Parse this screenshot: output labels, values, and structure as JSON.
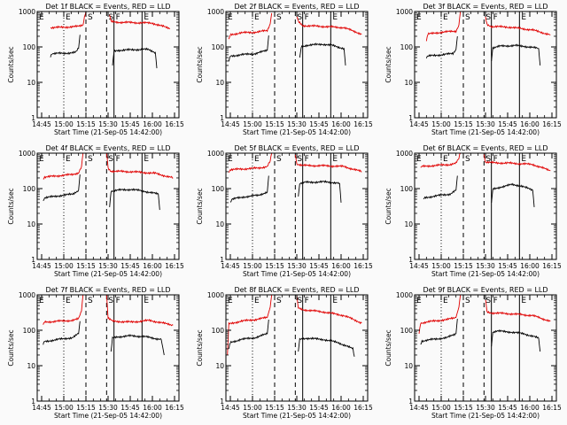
{
  "figure": {
    "panel_title_template": "Det {d}f BLACK = Events, RED = LLD",
    "xlabel": "Start Time (21-Sep-05 14:42:00)",
    "ylabel": "Counts/sec",
    "x_tick_labels": [
      "14:45",
      "15:00",
      "15:15",
      "15:30",
      "15:45",
      "16:00",
      "16:15"
    ],
    "y_tick_labels": [
      "1",
      "10",
      "100",
      "1000"
    ],
    "colors": {
      "events": "#000000",
      "lld": "#e00000"
    },
    "markers": [
      {
        "label": "E",
        "time_min": 0.0,
        "style": "dotted"
      },
      {
        "label": "E",
        "time_min": 18.0,
        "style": "dotted"
      },
      {
        "label": "S",
        "time_min": 33.0,
        "style": "dashed"
      },
      {
        "label": "S",
        "time_min": 47.0,
        "style": "dashed"
      },
      {
        "label": "F",
        "time_min": 52.0,
        "style": "solid"
      },
      {
        "label": "E",
        "time_min": 71.0,
        "style": "solid"
      }
    ]
  },
  "chart_data": [
    {
      "type": "line",
      "title": "Det 1f BLACK = Events, RED = LLD",
      "detector": 1,
      "xlabel": "Start Time (21-Sep-05 14:42:00)",
      "ylabel": "Counts/sec",
      "xlim_min": [
        0,
        96
      ],
      "ylim": [
        1,
        1000
      ],
      "yscale": "log",
      "series": [
        {
          "name": "LLD",
          "color": "#e00000",
          "segments": [
            {
              "x": [
                9,
                18,
                28,
                31,
                32,
                33
              ],
              "y": [
                350,
                360,
                380,
                420,
                700,
                1100
              ]
            },
            {
              "x": [
                49,
                50,
                54,
                70,
                78,
                90
              ],
              "y": [
                800,
                520,
                500,
                480,
                470,
                330
              ]
            }
          ]
        },
        {
          "name": "Events",
          "color": "#000000",
          "segments": [
            {
              "x": [
                9,
                10,
                18,
                26,
                28,
                29
              ],
              "y": [
                55,
                65,
                66,
                70,
                90,
                220
              ]
            },
            {
              "x": [
                51,
                52,
                54,
                70,
                75,
                80,
                81
              ],
              "y": [
                30,
                75,
                80,
                85,
                85,
                70,
                25
              ]
            }
          ]
        }
      ]
    },
    {
      "type": "line",
      "title": "Det 2f BLACK = Events, RED = LLD",
      "detector": 2,
      "xlabel": "Start Time (21-Sep-05 14:42:00)",
      "ylabel": "Counts/sec",
      "xlim_min": [
        0,
        96
      ],
      "ylim": [
        1,
        1000
      ],
      "yscale": "log",
      "series": [
        {
          "name": "LLD",
          "color": "#e00000",
          "segments": [
            {
              "x": [
                2,
                3,
                10,
                20,
                28,
                30,
                31
              ],
              "y": [
                160,
                220,
                250,
                260,
                290,
                450,
                900
              ]
            },
            {
              "x": [
                48,
                49,
                52,
                65,
                80,
                92
              ],
              "y": [
                750,
                520,
                400,
                380,
                350,
                230
              ]
            }
          ]
        },
        {
          "name": "Events",
          "color": "#000000",
          "segments": [
            {
              "x": [
                2,
                3,
                10,
                20,
                28,
                29
              ],
              "y": [
                40,
                55,
                60,
                65,
                80,
                210
              ]
            },
            {
              "x": [
                50,
                51,
                54,
                65,
                72,
                80,
                81
              ],
              "y": [
                50,
                100,
                110,
                120,
                110,
                90,
                30
              ]
            }
          ]
        }
      ]
    },
    {
      "type": "line",
      "title": "Det 3f BLACK = Events, RED = LLD",
      "detector": 3,
      "xlabel": "Start Time (21-Sep-05 14:42:00)",
      "ylabel": "Counts/sec",
      "xlim_min": [
        0,
        96
      ],
      "ylim": [
        1,
        1000
      ],
      "yscale": "log",
      "series": [
        {
          "name": "LLD",
          "color": "#e00000",
          "segments": [
            {
              "x": [
                8,
                9,
                18,
                28,
                30,
                31
              ],
              "y": [
                150,
                230,
                260,
                280,
                420,
                1000
              ]
            },
            {
              "x": [
                48,
                49,
                52,
                65,
                80,
                92
              ],
              "y": [
                700,
                430,
                380,
                360,
                300,
                220
              ]
            }
          ]
        },
        {
          "name": "Events",
          "color": "#000000",
          "segments": [
            {
              "x": [
                8,
                9,
                18,
                26,
                28,
                29
              ],
              "y": [
                50,
                55,
                60,
                65,
                85,
                200
              ]
            },
            {
              "x": [
                52,
                53,
                58,
                68,
                78,
                84,
                85
              ],
              "y": [
                40,
                95,
                105,
                110,
                100,
                90,
                30
              ]
            }
          ]
        }
      ]
    },
    {
      "type": "line",
      "title": "Det 4f BLACK = Events, RED = LLD",
      "detector": 4,
      "xlabel": "Start Time (21-Sep-05 14:42:00)",
      "ylabel": "Counts/sec",
      "xlim_min": [
        0,
        96
      ],
      "ylim": [
        1,
        1000
      ],
      "yscale": "log",
      "series": [
        {
          "name": "LLD",
          "color": "#e00000",
          "segments": [
            {
              "x": [
                4,
                5,
                14,
                24,
                28,
                30,
                31
              ],
              "y": [
                190,
                210,
                230,
                250,
                280,
                420,
                1000
              ]
            },
            {
              "x": [
                47,
                48,
                50,
                64,
                80,
                92
              ],
              "y": [
                1100,
                380,
                310,
                300,
                270,
                200
              ]
            }
          ]
        },
        {
          "name": "Events",
          "color": "#000000",
          "segments": [
            {
              "x": [
                4,
                5,
                14,
                24,
                28,
                29
              ],
              "y": [
                45,
                55,
                62,
                70,
                90,
                250
              ]
            },
            {
              "x": [
                49,
                50,
                54,
                64,
                72,
                82,
                83
              ],
              "y": [
                30,
                85,
                90,
                95,
                85,
                70,
                25
              ]
            }
          ]
        }
      ]
    },
    {
      "type": "line",
      "title": "Det 5f BLACK = Events, RED = LLD",
      "detector": 5,
      "xlabel": "Start Time (21-Sep-05 14:42:00)",
      "ylabel": "Counts/sec",
      "xlim_min": [
        0,
        96
      ],
      "ylim": [
        1,
        1000
      ],
      "yscale": "log",
      "series": [
        {
          "name": "LLD",
          "color": "#e00000",
          "segments": [
            {
              "x": [
                2,
                3,
                12,
                22,
                28,
                30,
                31
              ],
              "y": [
                300,
                340,
                360,
                380,
                420,
                600,
                1100
              ]
            },
            {
              "x": [
                47,
                48,
                52,
                68,
                80,
                92
              ],
              "y": [
                900,
                500,
                450,
                440,
                420,
                300
              ]
            }
          ]
        },
        {
          "name": "Events",
          "color": "#000000",
          "segments": [
            {
              "x": [
                3,
                4,
                12,
                22,
                28,
                29
              ],
              "y": [
                40,
                50,
                58,
                65,
                80,
                230
              ]
            },
            {
              "x": [
                49,
                50,
                54,
                66,
                72,
                77,
                78
              ],
              "y": [
                60,
                140,
                150,
                155,
                150,
                140,
                40
              ]
            }
          ]
        }
      ]
    },
    {
      "type": "line",
      "title": "Det 6f BLACK = Events, RED = LLD",
      "detector": 6,
      "xlabel": "Start Time (21-Sep-05 14:42:00)",
      "ylabel": "Counts/sec",
      "xlim_min": [
        0,
        96
      ],
      "ylim": [
        1,
        1000
      ],
      "yscale": "log",
      "series": [
        {
          "name": "LLD",
          "color": "#e00000",
          "segments": [
            {
              "x": [
                4,
                5,
                14,
                24,
                28,
                30,
                31
              ],
              "y": [
                380,
                420,
                450,
                480,
                520,
                700,
                1100
              ]
            },
            {
              "x": [
                47,
                48,
                52,
                66,
                80,
                92
              ],
              "y": [
                900,
                560,
                540,
                520,
                480,
                320
              ]
            }
          ]
        },
        {
          "name": "Events",
          "color": "#000000",
          "segments": [
            {
              "x": [
                6,
                7,
                14,
                24,
                28,
                29
              ],
              "y": [
                50,
                55,
                62,
                70,
                90,
                230
              ]
            },
            {
              "x": [
                52,
                53,
                58,
                66,
                72,
                80,
                81
              ],
              "y": [
                40,
                95,
                110,
                130,
                120,
                90,
                30
              ]
            }
          ]
        }
      ]
    },
    {
      "type": "line",
      "title": "Det 7f BLACK = Events, RED = LLD",
      "detector": 7,
      "xlabel": "Start Time (21-Sep-05 14:42:00)",
      "ylabel": "Counts/sec",
      "xlim_min": [
        0,
        96
      ],
      "ylim": [
        1,
        1000
      ],
      "yscale": "log",
      "series": [
        {
          "name": "LLD",
          "color": "#e00000",
          "segments": [
            {
              "x": [
                4,
                5,
                14,
                24,
                28,
                30,
                31
              ],
              "y": [
                140,
                170,
                180,
                190,
                210,
                350,
                1000
              ]
            },
            {
              "x": [
                47,
                48,
                51,
                64,
                76,
                92
              ],
              "y": [
                1000,
                220,
                180,
                170,
                190,
                140
              ]
            }
          ]
        },
        {
          "name": "Events",
          "color": "#000000",
          "segments": [
            {
              "x": [
                4,
                5,
                14,
                24,
                28,
                29
              ],
              "y": [
                40,
                48,
                55,
                62,
                80,
                180
              ]
            },
            {
              "x": [
                50,
                51,
                54,
                64,
                74,
                84,
                86
              ],
              "y": [
                25,
                60,
                65,
                70,
                65,
                55,
                20
              ]
            }
          ]
        }
      ]
    },
    {
      "type": "line",
      "title": "Det 8f BLACK = Events, RED = LLD",
      "detector": 8,
      "xlabel": "Start Time (21-Sep-05 14:42:00)",
      "ylabel": "Counts/sec",
      "xlim_min": [
        0,
        96
      ],
      "ylim": [
        1,
        1000
      ],
      "yscale": "log",
      "series": [
        {
          "name": "LLD",
          "color": "#e00000",
          "segments": [
            {
              "x": [
                1,
                2,
                10,
                20,
                28,
                30,
                31
              ],
              "y": [
                20,
                150,
                180,
                200,
                230,
                450,
                1000
              ]
            },
            {
              "x": [
                48,
                49,
                52,
                66,
                80,
                92
              ],
              "y": [
                1000,
                420,
                380,
                330,
                260,
                160
              ]
            }
          ]
        },
        {
          "name": "Events",
          "color": "#000000",
          "segments": [
            {
              "x": [
                2,
                3,
                10,
                20,
                28,
                29
              ],
              "y": [
                30,
                45,
                55,
                62,
                80,
                200
              ]
            },
            {
              "x": [
                49,
                50,
                54,
                66,
                76,
                86,
                87
              ],
              "y": [
                25,
                55,
                60,
                55,
                45,
                30,
                18
              ]
            }
          ]
        }
      ]
    },
    {
      "type": "line",
      "title": "Det 9f BLACK = Events, RED = LLD",
      "detector": 9,
      "xlabel": "Start Time (21-Sep-05 14:42:00)",
      "ylabel": "Counts/sec",
      "xlim_min": [
        0,
        96
      ],
      "ylim": [
        1,
        1000
      ],
      "yscale": "log",
      "series": [
        {
          "name": "LLD",
          "color": "#e00000",
          "segments": [
            {
              "x": [
                3,
                4,
                12,
                22,
                28,
                30,
                31
              ],
              "y": [
                80,
                160,
                180,
                200,
                230,
                450,
                1000
              ]
            },
            {
              "x": [
                48,
                49,
                52,
                66,
                80,
                92
              ],
              "y": [
                800,
                330,
                310,
                290,
                260,
                180
              ]
            }
          ]
        },
        {
          "name": "Events",
          "color": "#000000",
          "segments": [
            {
              "x": [
                4,
                5,
                12,
                22,
                28,
                29
              ],
              "y": [
                40,
                50,
                55,
                62,
                80,
                210
              ]
            },
            {
              "x": [
                52,
                53,
                56,
                64,
                74,
                84,
                85
              ],
              "y": [
                35,
                90,
                95,
                90,
                80,
                60,
                25
              ]
            }
          ]
        }
      ]
    }
  ]
}
